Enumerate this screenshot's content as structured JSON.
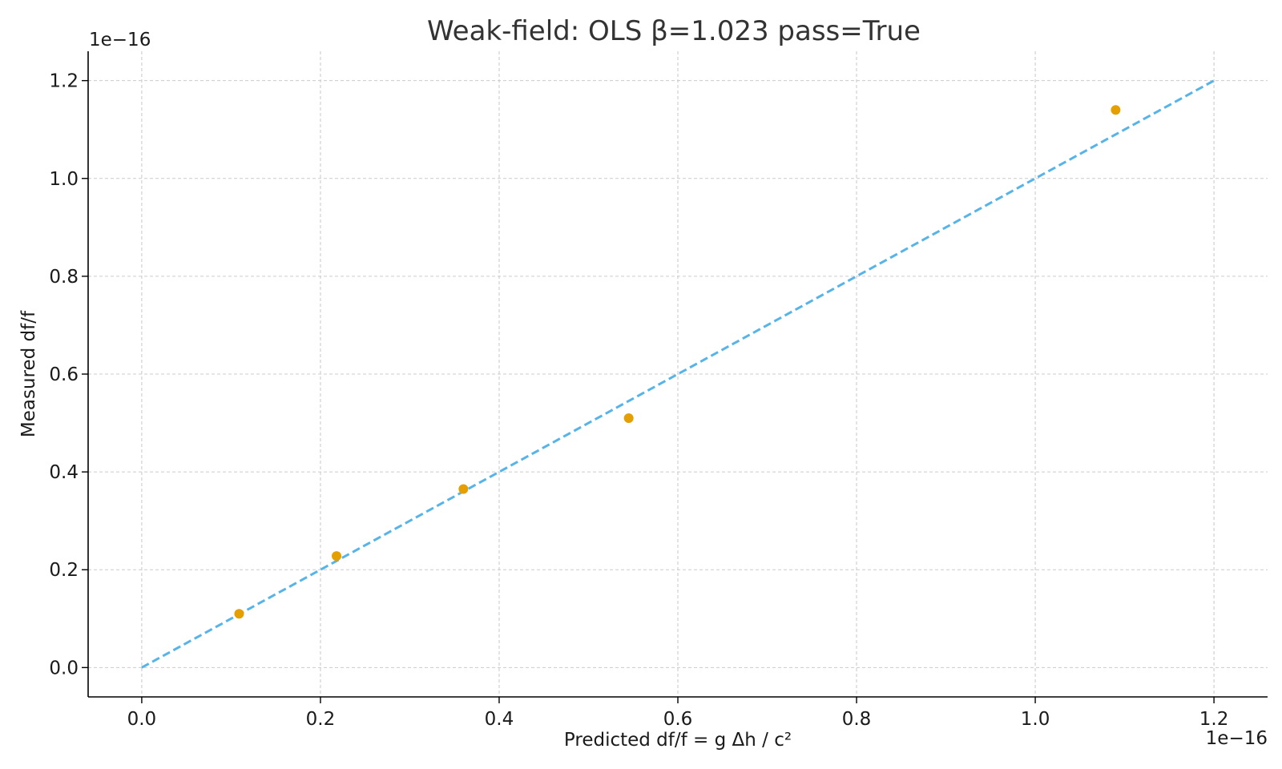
{
  "chart_data": {
    "type": "scatter",
    "title": "Weak-field: OLS β=1.023 pass=True",
    "xlabel": "Predicted df/f = g Δh / c²",
    "ylabel": "Measured df/f",
    "x_offset_label": "1e−16",
    "y_offset_label": "1e−16",
    "xlim": [
      -0.06,
      1.26
    ],
    "ylim": [
      -0.06,
      1.26
    ],
    "x_ticks": [
      0.0,
      0.2,
      0.4,
      0.6,
      0.8,
      1.0,
      1.2
    ],
    "x_tick_labels": [
      "0.0",
      "0.2",
      "0.4",
      "0.6",
      "0.8",
      "1.0",
      "1.2"
    ],
    "y_ticks": [
      0.0,
      0.2,
      0.4,
      0.6,
      0.8,
      1.0,
      1.2
    ],
    "y_tick_labels": [
      "0.0",
      "0.2",
      "0.4",
      "0.6",
      "0.8",
      "1.0",
      "1.2"
    ],
    "grid": true,
    "units_scale": "1e-16",
    "series": [
      {
        "type": "scatter",
        "color": "#E69F00",
        "x": [
          0.109,
          0.218,
          0.36,
          0.545,
          1.09
        ],
        "y": [
          0.11,
          0.228,
          0.365,
          0.51,
          1.14
        ]
      },
      {
        "type": "line",
        "style": "dashed",
        "color": "#56B4E9",
        "x": [
          0.0,
          1.2
        ],
        "y": [
          0.0,
          1.2
        ]
      }
    ]
  }
}
